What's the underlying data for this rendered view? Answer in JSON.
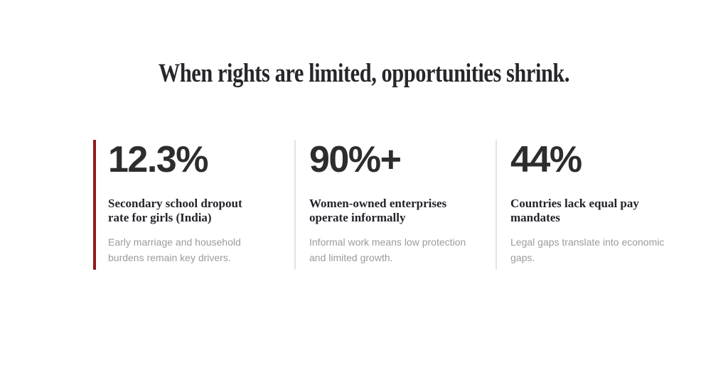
{
  "heading": "When rights are limited, opportunities shrink.",
  "colors": {
    "background": "#ffffff",
    "heading_text": "#26262b",
    "stat_value_text": "#2d2d2d",
    "stat_title_text": "#23232a",
    "stat_description_text": "#9b9b9b",
    "accent_red": "#8e1b1b",
    "divider_gray": "#e3e3e3"
  },
  "stats": [
    {
      "value": "12.3%",
      "title": "Secondary school dropout rate for girls (India)",
      "description": "Early marriage and household burdens remain key drivers.",
      "accent": "#8e1b1b"
    },
    {
      "value": "90%+",
      "title": "Women-owned enterprises operate informally",
      "description": "Informal work means low protection and limited growth.",
      "accent": "#e3e3e3"
    },
    {
      "value": "44%",
      "title": "Countries lack equal pay mandates",
      "description": "Legal gaps translate into economic gaps.",
      "accent": "#e3e3e3"
    }
  ]
}
